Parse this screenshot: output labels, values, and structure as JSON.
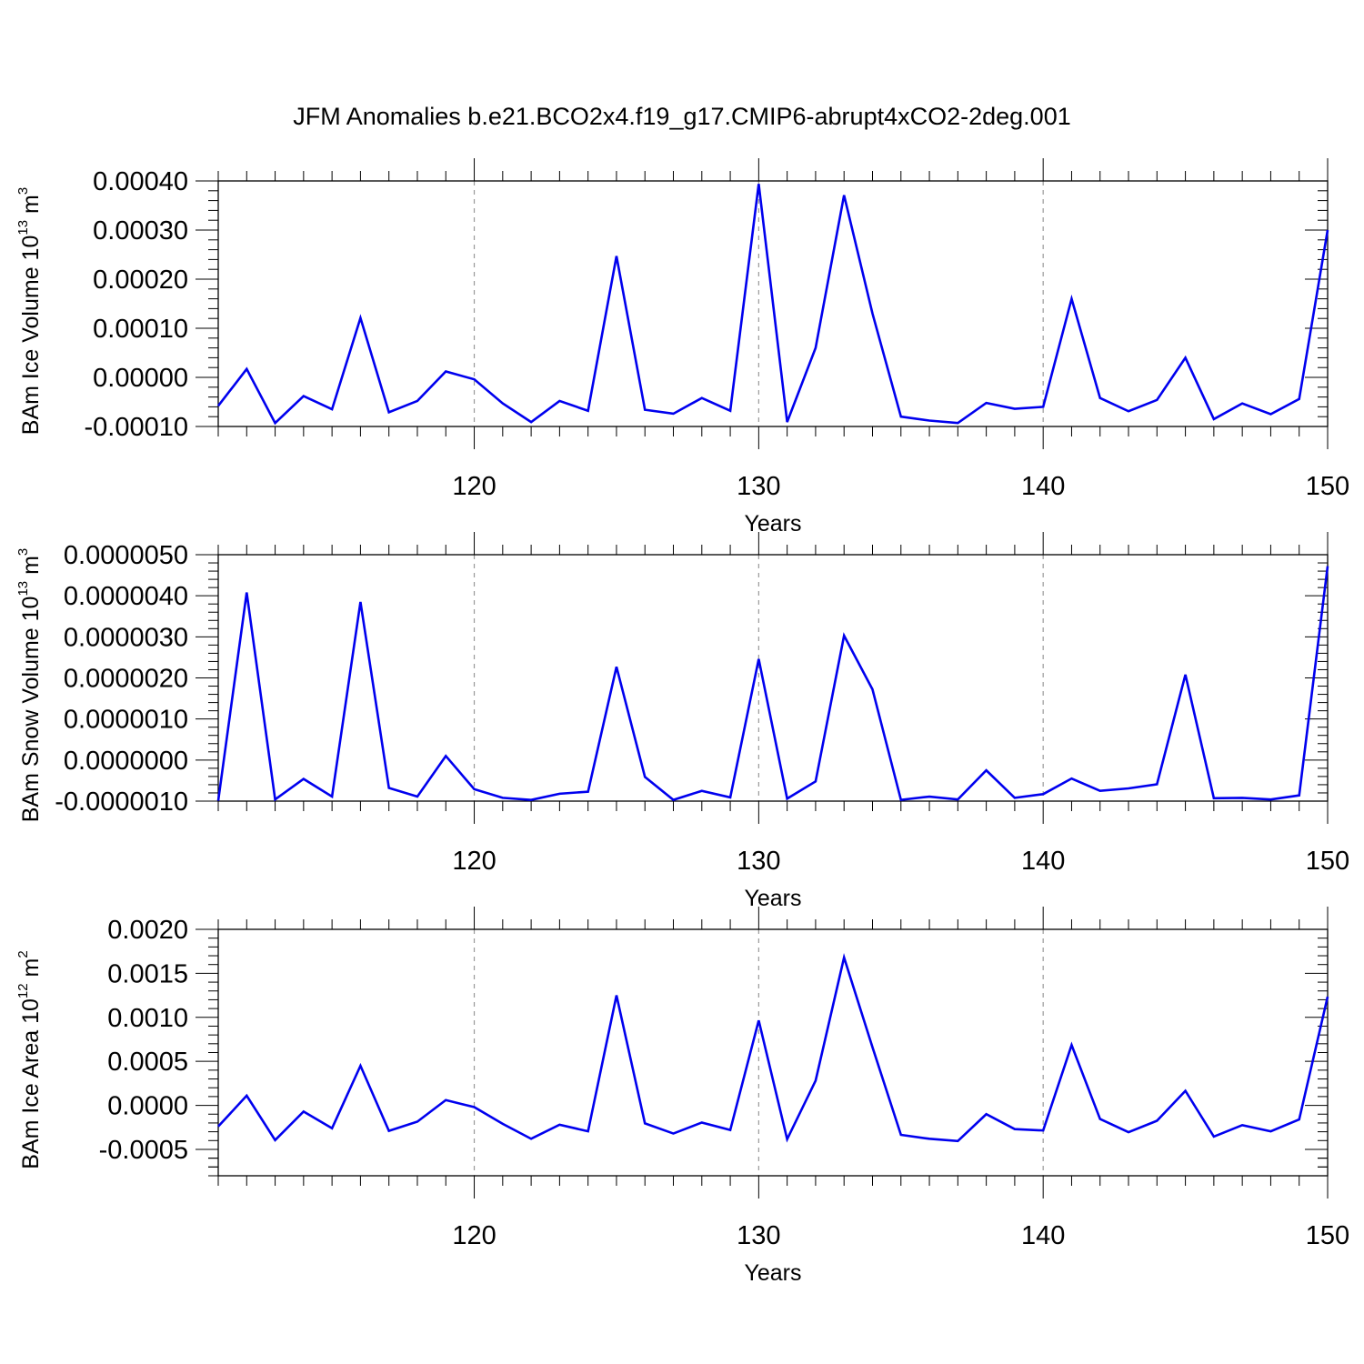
{
  "title": "JFM Anomalies b.e21.BCO2x4.f19_g17.CMIP6-abrupt4xCO2-2deg.001",
  "colors": {
    "line": "#0000ee",
    "axis": "#000000",
    "grid": "#999999"
  },
  "chart_data": [
    {
      "type": "line",
      "xlabel": "Years",
      "ylabel": {
        "text": "BAm Ice Volume 10",
        "exp": "13",
        "unit": " m",
        "unit_exp": "3"
      },
      "xlim": [
        111,
        150
      ],
      "ylim": [
        -0.0001,
        0.0004
      ],
      "x_ticks": [
        120,
        130,
        140,
        150
      ],
      "x_tick_labels": [
        "120",
        "130",
        "140",
        "150"
      ],
      "y_ticks": [
        -0.0001,
        0.0,
        0.0001,
        0.0002,
        0.0003,
        0.0004
      ],
      "y_tick_labels": [
        "-0.00010",
        "0.00000",
        "0.00010",
        "0.00020",
        "0.00030",
        "0.00040"
      ],
      "x": [
        111,
        112,
        113,
        114,
        115,
        116,
        117,
        118,
        119,
        120,
        121,
        122,
        123,
        124,
        125,
        126,
        127,
        128,
        129,
        130,
        131,
        132,
        133,
        134,
        135,
        136,
        137,
        138,
        139,
        140,
        141,
        142,
        143,
        144,
        145,
        146,
        147,
        148,
        149,
        150
      ],
      "series": [
        {
          "values": [
            -5.8e-05,
            1.7e-05,
            -9.3e-05,
            -3.8e-05,
            -6.5e-05,
            0.000121,
            -7.1e-05,
            -4.8e-05,
            1.2e-05,
            -4e-06,
            -5.3e-05,
            -9.1e-05,
            -4.8e-05,
            -6.8e-05,
            0.000247,
            -6.6e-05,
            -7.4e-05,
            -4.2e-05,
            -6.8e-05,
            0.000394,
            -9.1e-05,
            6e-05,
            0.000371,
            0.00013,
            -8e-05,
            -8.8e-05,
            -9.3e-05,
            -5.2e-05,
            -6.4e-05,
            -6e-05,
            0.00016,
            -4.2e-05,
            -6.9e-05,
            -4.6e-05,
            4e-05,
            -8.5e-05,
            -5.3e-05,
            -7.5e-05,
            -4.4e-05,
            0.0003
          ]
        }
      ]
    },
    {
      "type": "line",
      "xlabel": "Years",
      "ylabel": {
        "text": "BAm Snow Volume 10",
        "exp": "13",
        "unit": " m",
        "unit_exp": "3"
      },
      "xlim": [
        111,
        150
      ],
      "ylim": [
        -1e-06,
        5e-06
      ],
      "x_ticks": [
        120,
        130,
        140,
        150
      ],
      "x_tick_labels": [
        "120",
        "130",
        "140",
        "150"
      ],
      "y_ticks": [
        -1e-06,
        0.0,
        1e-06,
        2e-06,
        3e-06,
        4e-06,
        5e-06
      ],
      "y_tick_labels": [
        "-0.0000010",
        "0.0000000",
        "0.0000010",
        "0.0000020",
        "0.0000030",
        "0.0000040",
        "0.0000050"
      ],
      "x": [
        111,
        112,
        113,
        114,
        115,
        116,
        117,
        118,
        119,
        120,
        121,
        122,
        123,
        124,
        125,
        126,
        127,
        128,
        129,
        130,
        131,
        132,
        133,
        134,
        135,
        136,
        137,
        138,
        139,
        140,
        141,
        142,
        143,
        144,
        145,
        146,
        147,
        148,
        149,
        150
      ],
      "series": [
        {
          "values": [
            -9.9e-07,
            4.08e-06,
            -9.6e-07,
            -4.6e-07,
            -8.9e-07,
            3.85e-06,
            -6.8e-07,
            -8.9e-07,
            1e-07,
            -7.1e-07,
            -9.2e-07,
            -9.7e-07,
            -8.2e-07,
            -7.7e-07,
            2.27e-06,
            -4.1e-07,
            -9.7e-07,
            -7.5e-07,
            -9.1e-07,
            2.46e-06,
            -9.4e-07,
            -5.2e-07,
            3.03e-06,
            1.72e-06,
            -9.7e-07,
            -8.9e-07,
            -9.6e-07,
            -2.5e-07,
            -9.2e-07,
            -8.3e-07,
            -4.5e-07,
            -7.5e-07,
            -6.9e-07,
            -5.9e-07,
            2.08e-06,
            -9.3e-07,
            -9.2e-07,
            -9.6e-07,
            -8.6e-07,
            4.72e-06
          ]
        }
      ]
    },
    {
      "type": "line",
      "xlabel": "Years",
      "ylabel": {
        "text": "BAm Ice Area 10",
        "exp": "12",
        "unit": " m",
        "unit_exp": "2"
      },
      "xlim": [
        111,
        150
      ],
      "ylim": [
        -0.0008,
        0.002
      ],
      "x_ticks": [
        120,
        130,
        140,
        150
      ],
      "x_tick_labels": [
        "120",
        "130",
        "140",
        "150"
      ],
      "y_ticks": [
        -0.0005,
        0.0,
        0.0005,
        0.001,
        0.0015,
        0.002
      ],
      "y_tick_labels": [
        "-0.0005",
        "0.0000",
        "0.0005",
        "0.0010",
        "0.0015",
        "0.0020"
      ],
      "x": [
        111,
        112,
        113,
        114,
        115,
        116,
        117,
        118,
        119,
        120,
        121,
        122,
        123,
        124,
        125,
        126,
        127,
        128,
        129,
        130,
        131,
        132,
        133,
        134,
        135,
        136,
        137,
        138,
        139,
        140,
        141,
        142,
        143,
        144,
        145,
        146,
        147,
        148,
        149,
        150
      ],
      "series": [
        {
          "values": [
            -0.00024,
            0.00011,
            -0.000395,
            -7e-05,
            -0.00026,
            0.00045,
            -0.00029,
            -0.000185,
            6e-05,
            -2e-05,
            -0.00021,
            -0.00038,
            -0.00022,
            -0.000295,
            0.00125,
            -0.000205,
            -0.00032,
            -0.000195,
            -0.00028,
            0.000965,
            -0.000385,
            0.00028,
            0.00168,
            0.00066,
            -0.000335,
            -0.00038,
            -0.000405,
            -0.0001,
            -0.00027,
            -0.000285,
            0.000685,
            -0.000155,
            -0.000305,
            -0.000175,
            0.000165,
            -0.000355,
            -0.000225,
            -0.000295,
            -0.00016,
            0.001235
          ]
        }
      ]
    }
  ]
}
